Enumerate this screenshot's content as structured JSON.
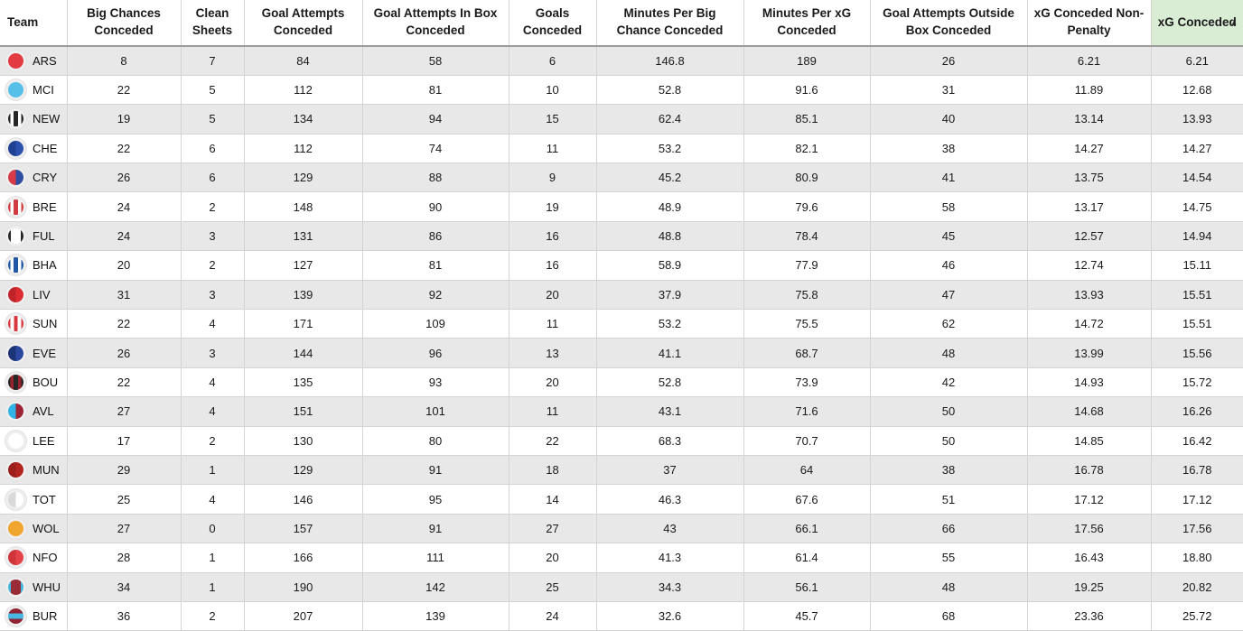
{
  "table": {
    "sort_icon": "▲",
    "colors": {
      "sorted_header_bg": "#d9ecd4",
      "row_stripe": "#e8e8e8",
      "grid_line": "#d4d4d4",
      "header_underline": "#9c9c9c"
    },
    "columns": [
      {
        "label": "Team",
        "sorted": false
      },
      {
        "label": "Big Chances Conceded",
        "sorted": false
      },
      {
        "label": "Clean Sheets",
        "sorted": false
      },
      {
        "label": "Goal Attempts Conceded",
        "sorted": false
      },
      {
        "label": "Goal Attempts In Box Conceded",
        "sorted": false
      },
      {
        "label": "Goals Conceded",
        "sorted": false
      },
      {
        "label": "Minutes Per Big Chance Conceded",
        "sorted": false
      },
      {
        "label": "Minutes Per xG Conceded",
        "sorted": false
      },
      {
        "label": "Goal Attempts Outside Box Conceded",
        "sorted": false
      },
      {
        "label": "xG Conceded Non-Penalty",
        "sorted": false
      },
      {
        "label": "xG Conceded",
        "sorted": true,
        "sort_direction": "ascending"
      }
    ],
    "rows": [
      {
        "team": "ARS",
        "badge_css": "#e23b41",
        "values": [
          "8",
          "7",
          "84",
          "58",
          "6",
          "146.8",
          "189",
          "26",
          "6.21",
          "6.21"
        ]
      },
      {
        "team": "MCI",
        "badge_css": "#56c0e8",
        "values": [
          "22",
          "5",
          "112",
          "81",
          "10",
          "52.8",
          "91.6",
          "31",
          "11.89",
          "12.68"
        ]
      },
      {
        "team": "NEW",
        "badge_css": "linear-gradient(90deg, #262626 0 16%, #ffffff 16% 36%, #262626 36% 64%, #ffffff 64% 84%, #262626 84% 100%)",
        "values": [
          "19",
          "5",
          "134",
          "94",
          "15",
          "62.4",
          "85.1",
          "40",
          "13.14",
          "13.93"
        ]
      },
      {
        "team": "CHE",
        "badge_css": "linear-gradient(90deg, #1f3f93 0 50%, #2c50ae 50% 100%)",
        "values": [
          "22",
          "6",
          "112",
          "74",
          "11",
          "53.2",
          "82.1",
          "38",
          "14.27",
          "14.27"
        ]
      },
      {
        "team": "CRY",
        "badge_css": "linear-gradient(90deg, #d63b47 0 50%, #2f4da0 50% 100%)",
        "values": [
          "26",
          "6",
          "129",
          "88",
          "9",
          "45.2",
          "80.9",
          "41",
          "13.75",
          "14.54"
        ]
      },
      {
        "team": "BRE",
        "badge_css": "linear-gradient(90deg, #d23b42 0 16%, #ffffff 16% 36%, #d23b42 36% 64%, #ffffff 64% 84%, #d23b42 84% 100%)",
        "values": [
          "24",
          "2",
          "148",
          "90",
          "19",
          "48.9",
          "79.6",
          "58",
          "13.17",
          "14.75"
        ]
      },
      {
        "team": "FUL",
        "badge_css": "linear-gradient(90deg, #262626 0 18%, #ffffff 18% 82%, #262626 82% 100%)",
        "values": [
          "24",
          "3",
          "131",
          "86",
          "16",
          "48.8",
          "78.4",
          "45",
          "12.57",
          "14.94"
        ]
      },
      {
        "team": "BHA",
        "badge_css": "linear-gradient(90deg, #2257a5 0 16%, #ffffff 16% 36%, #2257a5 36% 64%, #ffffff 64% 84%, #2257a5 84% 100%)",
        "values": [
          "20",
          "2",
          "127",
          "81",
          "16",
          "58.9",
          "77.9",
          "46",
          "12.74",
          "15.11"
        ]
      },
      {
        "team": "LIV",
        "badge_css": "linear-gradient(90deg, #c0242b 0 50%, #de2c33 50% 100%)",
        "values": [
          "31",
          "3",
          "139",
          "92",
          "20",
          "37.9",
          "75.8",
          "47",
          "13.93",
          "15.51"
        ]
      },
      {
        "team": "SUN",
        "badge_css": "linear-gradient(90deg, #d8373e 0 14%, #ffffff 14% 38%, #d8373e 38% 62%, #ffffff 62% 86%, #d8373e 86% 100%)",
        "values": [
          "22",
          "4",
          "171",
          "109",
          "11",
          "53.2",
          "75.5",
          "62",
          "14.72",
          "15.51"
        ]
      },
      {
        "team": "EVE",
        "badge_css": "linear-gradient(90deg, #1d3377 0 50%, #2a47a0 50% 100%)",
        "values": [
          "26",
          "3",
          "144",
          "96",
          "13",
          "41.1",
          "68.7",
          "48",
          "13.99",
          "15.56"
        ]
      },
      {
        "team": "BOU",
        "badge_css": "linear-gradient(90deg, #262626 0 16%, #98242b 16% 36%, #262626 36% 64%, #98242b 64% 84%, #262626 84% 100%)",
        "values": [
          "22",
          "4",
          "135",
          "93",
          "20",
          "52.8",
          "73.9",
          "42",
          "14.93",
          "15.72"
        ]
      },
      {
        "team": "AVL",
        "badge_css": "linear-gradient(90deg, #2fb3e8 0 50%, #9c2334 50% 100%)",
        "values": [
          "27",
          "4",
          "151",
          "101",
          "11",
          "43.1",
          "71.6",
          "50",
          "14.68",
          "16.26"
        ]
      },
      {
        "team": "LEE",
        "badge_css": "#ffffff",
        "values": [
          "17",
          "2",
          "130",
          "80",
          "22",
          "68.3",
          "70.7",
          "50",
          "14.85",
          "16.42"
        ]
      },
      {
        "team": "MUN",
        "badge_css": "linear-gradient(90deg, #9c1f1c 0 50%, #b2251f 50% 100%)",
        "values": [
          "29",
          "1",
          "129",
          "91",
          "18",
          "37",
          "64",
          "38",
          "16.78",
          "16.78"
        ]
      },
      {
        "team": "TOT",
        "badge_css": "linear-gradient(90deg, #d9d9d9 0 50%, #ffffff 50% 100%)",
        "values": [
          "25",
          "4",
          "146",
          "95",
          "14",
          "46.3",
          "67.6",
          "51",
          "17.12",
          "17.12"
        ]
      },
      {
        "team": "WOL",
        "badge_css": "#f0a62e",
        "values": [
          "27",
          "0",
          "157",
          "91",
          "27",
          "43",
          "66.1",
          "66",
          "17.56",
          "17.56"
        ]
      },
      {
        "team": "NFO",
        "badge_css": "linear-gradient(90deg, #cf343b 0 50%, #e4434a 50% 100%)",
        "values": [
          "28",
          "1",
          "166",
          "111",
          "20",
          "41.3",
          "61.4",
          "55",
          "16.43",
          "18.80"
        ]
      },
      {
        "team": "WHU",
        "badge_css": "linear-gradient(90deg, #45b8dd 0 18%, #9a2c38 18% 82%, #45b8dd 82% 100%)",
        "values": [
          "34",
          "1",
          "190",
          "142",
          "25",
          "34.3",
          "56.1",
          "48",
          "19.25",
          "20.82"
        ]
      },
      {
        "team": "BUR",
        "badge_css": "linear-gradient(180deg, #8f2233 0 32%, #49b7e2 32% 68%, #8f2233 68% 100%)",
        "values": [
          "36",
          "2",
          "207",
          "139",
          "24",
          "32.6",
          "45.7",
          "68",
          "23.36",
          "25.72"
        ]
      }
    ]
  }
}
